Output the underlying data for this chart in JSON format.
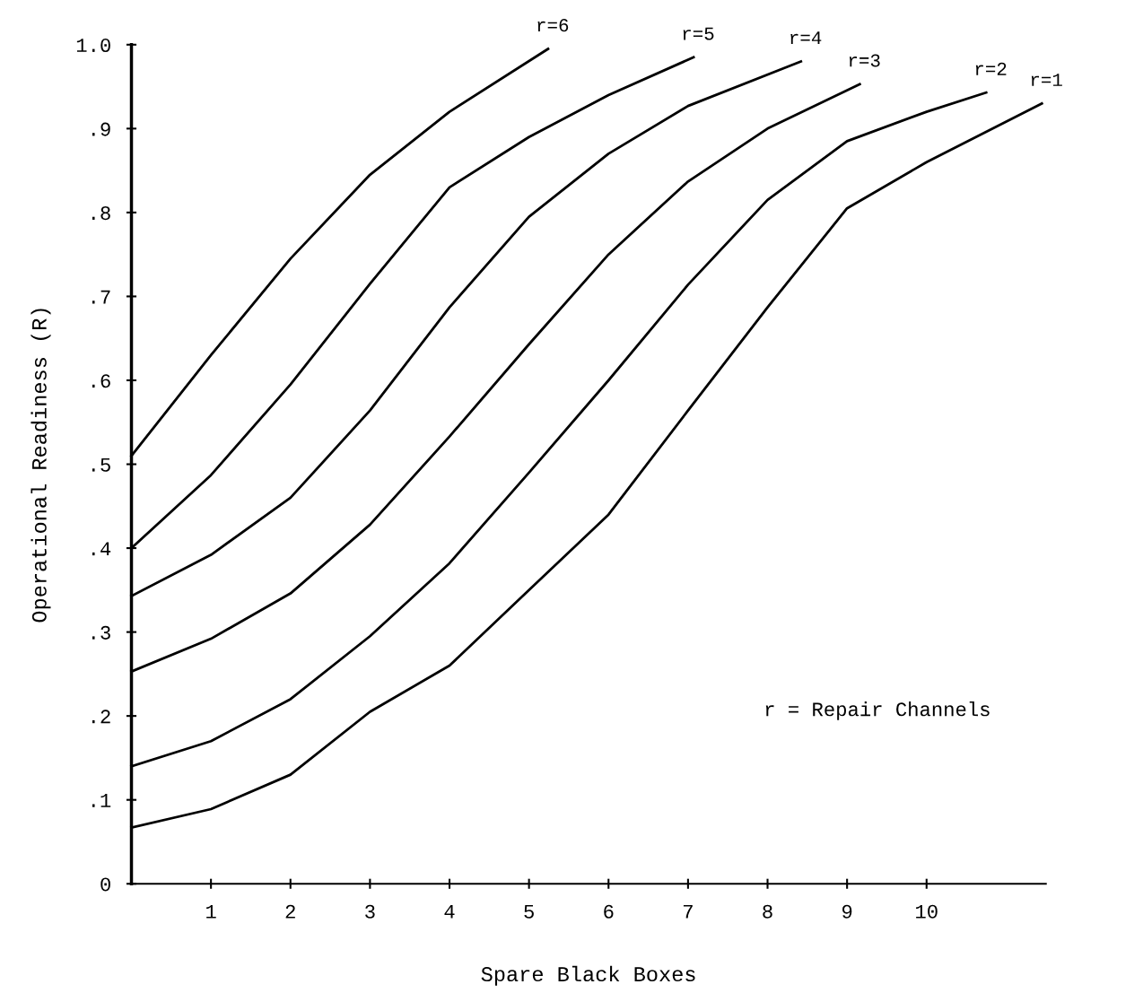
{
  "chart_data": {
    "type": "line",
    "xlabel": "Spare Black Boxes",
    "ylabel": "Operational Readiness (R)",
    "xlim": [
      0,
      11.5
    ],
    "xticks": [
      1,
      2,
      3,
      4,
      5,
      6,
      7,
      8,
      9,
      10
    ],
    "ylim": [
      0,
      1.0
    ],
    "yticks": [
      {
        "value": 0,
        "label": "0"
      },
      {
        "value": 0.1,
        "label": ".1"
      },
      {
        "value": 0.2,
        "label": ".2"
      },
      {
        "value": 0.3,
        "label": ".3"
      },
      {
        "value": 0.4,
        "label": ".4"
      },
      {
        "value": 0.5,
        "label": ".5"
      },
      {
        "value": 0.6,
        "label": ".6"
      },
      {
        "value": 0.7,
        "label": ".7"
      },
      {
        "value": 0.8,
        "label": ".8"
      },
      {
        "value": 0.9,
        "label": ".9"
      },
      {
        "value": 1.0,
        "label": "1.0"
      }
    ],
    "grid": false,
    "legend": false,
    "marker": "none",
    "line_style": "solid",
    "annotations": [
      "r = Repair Channels"
    ],
    "series": [
      {
        "name": "r=6",
        "color": "#000000",
        "x": [
          0,
          1,
          2,
          3,
          4,
          5.24
        ],
        "values": [
          0.51,
          0.63,
          0.745,
          0.845,
          0.92,
          0.995
        ]
      },
      {
        "name": "r=5",
        "color": "#000000",
        "x": [
          0,
          1,
          2,
          3,
          4,
          5,
          6,
          7.07
        ],
        "values": [
          0.4,
          0.487,
          0.595,
          0.715,
          0.83,
          0.89,
          0.94,
          0.985
        ]
      },
      {
        "name": "r=4",
        "color": "#000000",
        "x": [
          0,
          1,
          2,
          3,
          4,
          5,
          6,
          7,
          8.42
        ],
        "values": [
          0.343,
          0.392,
          0.46,
          0.564,
          0.687,
          0.795,
          0.87,
          0.927,
          0.98
        ]
      },
      {
        "name": "r=3",
        "color": "#000000",
        "x": [
          0,
          1,
          2,
          3,
          4,
          5,
          6,
          7,
          8,
          9.16
        ],
        "values": [
          0.253,
          0.292,
          0.346,
          0.428,
          0.533,
          0.643,
          0.75,
          0.837,
          0.9,
          0.953
        ]
      },
      {
        "name": "r=2",
        "color": "#000000",
        "x": [
          0,
          1,
          2,
          3,
          4,
          5,
          6,
          7,
          8,
          9,
          10,
          10.75
        ],
        "values": [
          0.14,
          0.17,
          0.22,
          0.295,
          0.382,
          0.49,
          0.6,
          0.714,
          0.815,
          0.885,
          0.92,
          0.943
        ]
      },
      {
        "name": "r=1",
        "color": "#000000",
        "x": [
          0,
          1,
          2,
          3,
          4,
          5,
          6,
          7,
          8,
          9,
          10,
          11.45
        ],
        "values": [
          0.067,
          0.089,
          0.13,
          0.205,
          0.26,
          0.35,
          0.44,
          0.564,
          0.687,
          0.805,
          0.86,
          0.93
        ]
      }
    ]
  }
}
